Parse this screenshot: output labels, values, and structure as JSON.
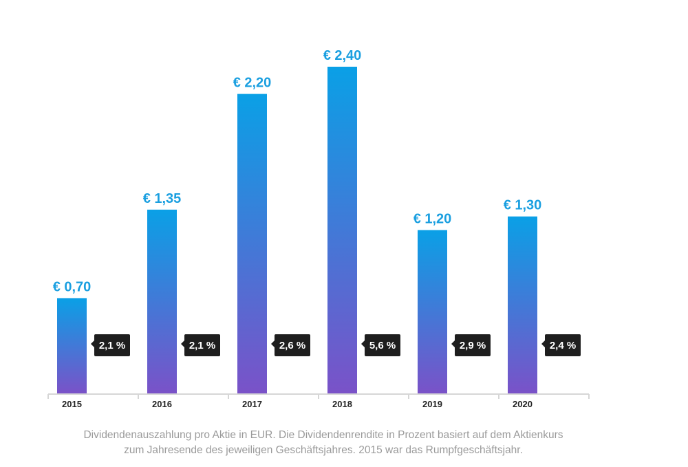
{
  "chart_data": {
    "type": "bar",
    "title": "",
    "xlabel": "",
    "ylabel": "",
    "ylim": [
      0,
      2.4
    ],
    "grid": false,
    "categories": [
      "2015",
      "2016",
      "2017",
      "2018",
      "2019",
      "2020"
    ],
    "values": [
      0.7,
      1.35,
      2.2,
      2.4,
      1.2,
      1.3
    ],
    "value_labels": [
      "€ 0,70",
      "€ 1,35",
      "€ 2,20",
      "€ 2,40",
      "€ 1,20",
      "€ 1,30"
    ],
    "yield_labels": [
      "2,1 %",
      "2,1 %",
      "2,6 %",
      "5,6 %",
      "2,9 %",
      "2,4 %"
    ],
    "yield_values": [
      2.1,
      2.1,
      2.6,
      5.6,
      2.9,
      2.4
    ],
    "colors": {
      "bar_top": "#0aa0e6",
      "bar_bottom": "#7a52c8",
      "value_label": "#1a9fe0",
      "badge": "#1e1e1e",
      "axis": "#d6d6d6"
    }
  },
  "caption": {
    "line1": "Dividendenauszahlung pro Aktie in EUR. Die Dividendenrendite in Prozent basiert auf dem Aktienkurs",
    "line2": "zum Jahresende des jeweiligen Geschäftsjahres. 2015 war das Rumpfgeschäftsjahr."
  }
}
